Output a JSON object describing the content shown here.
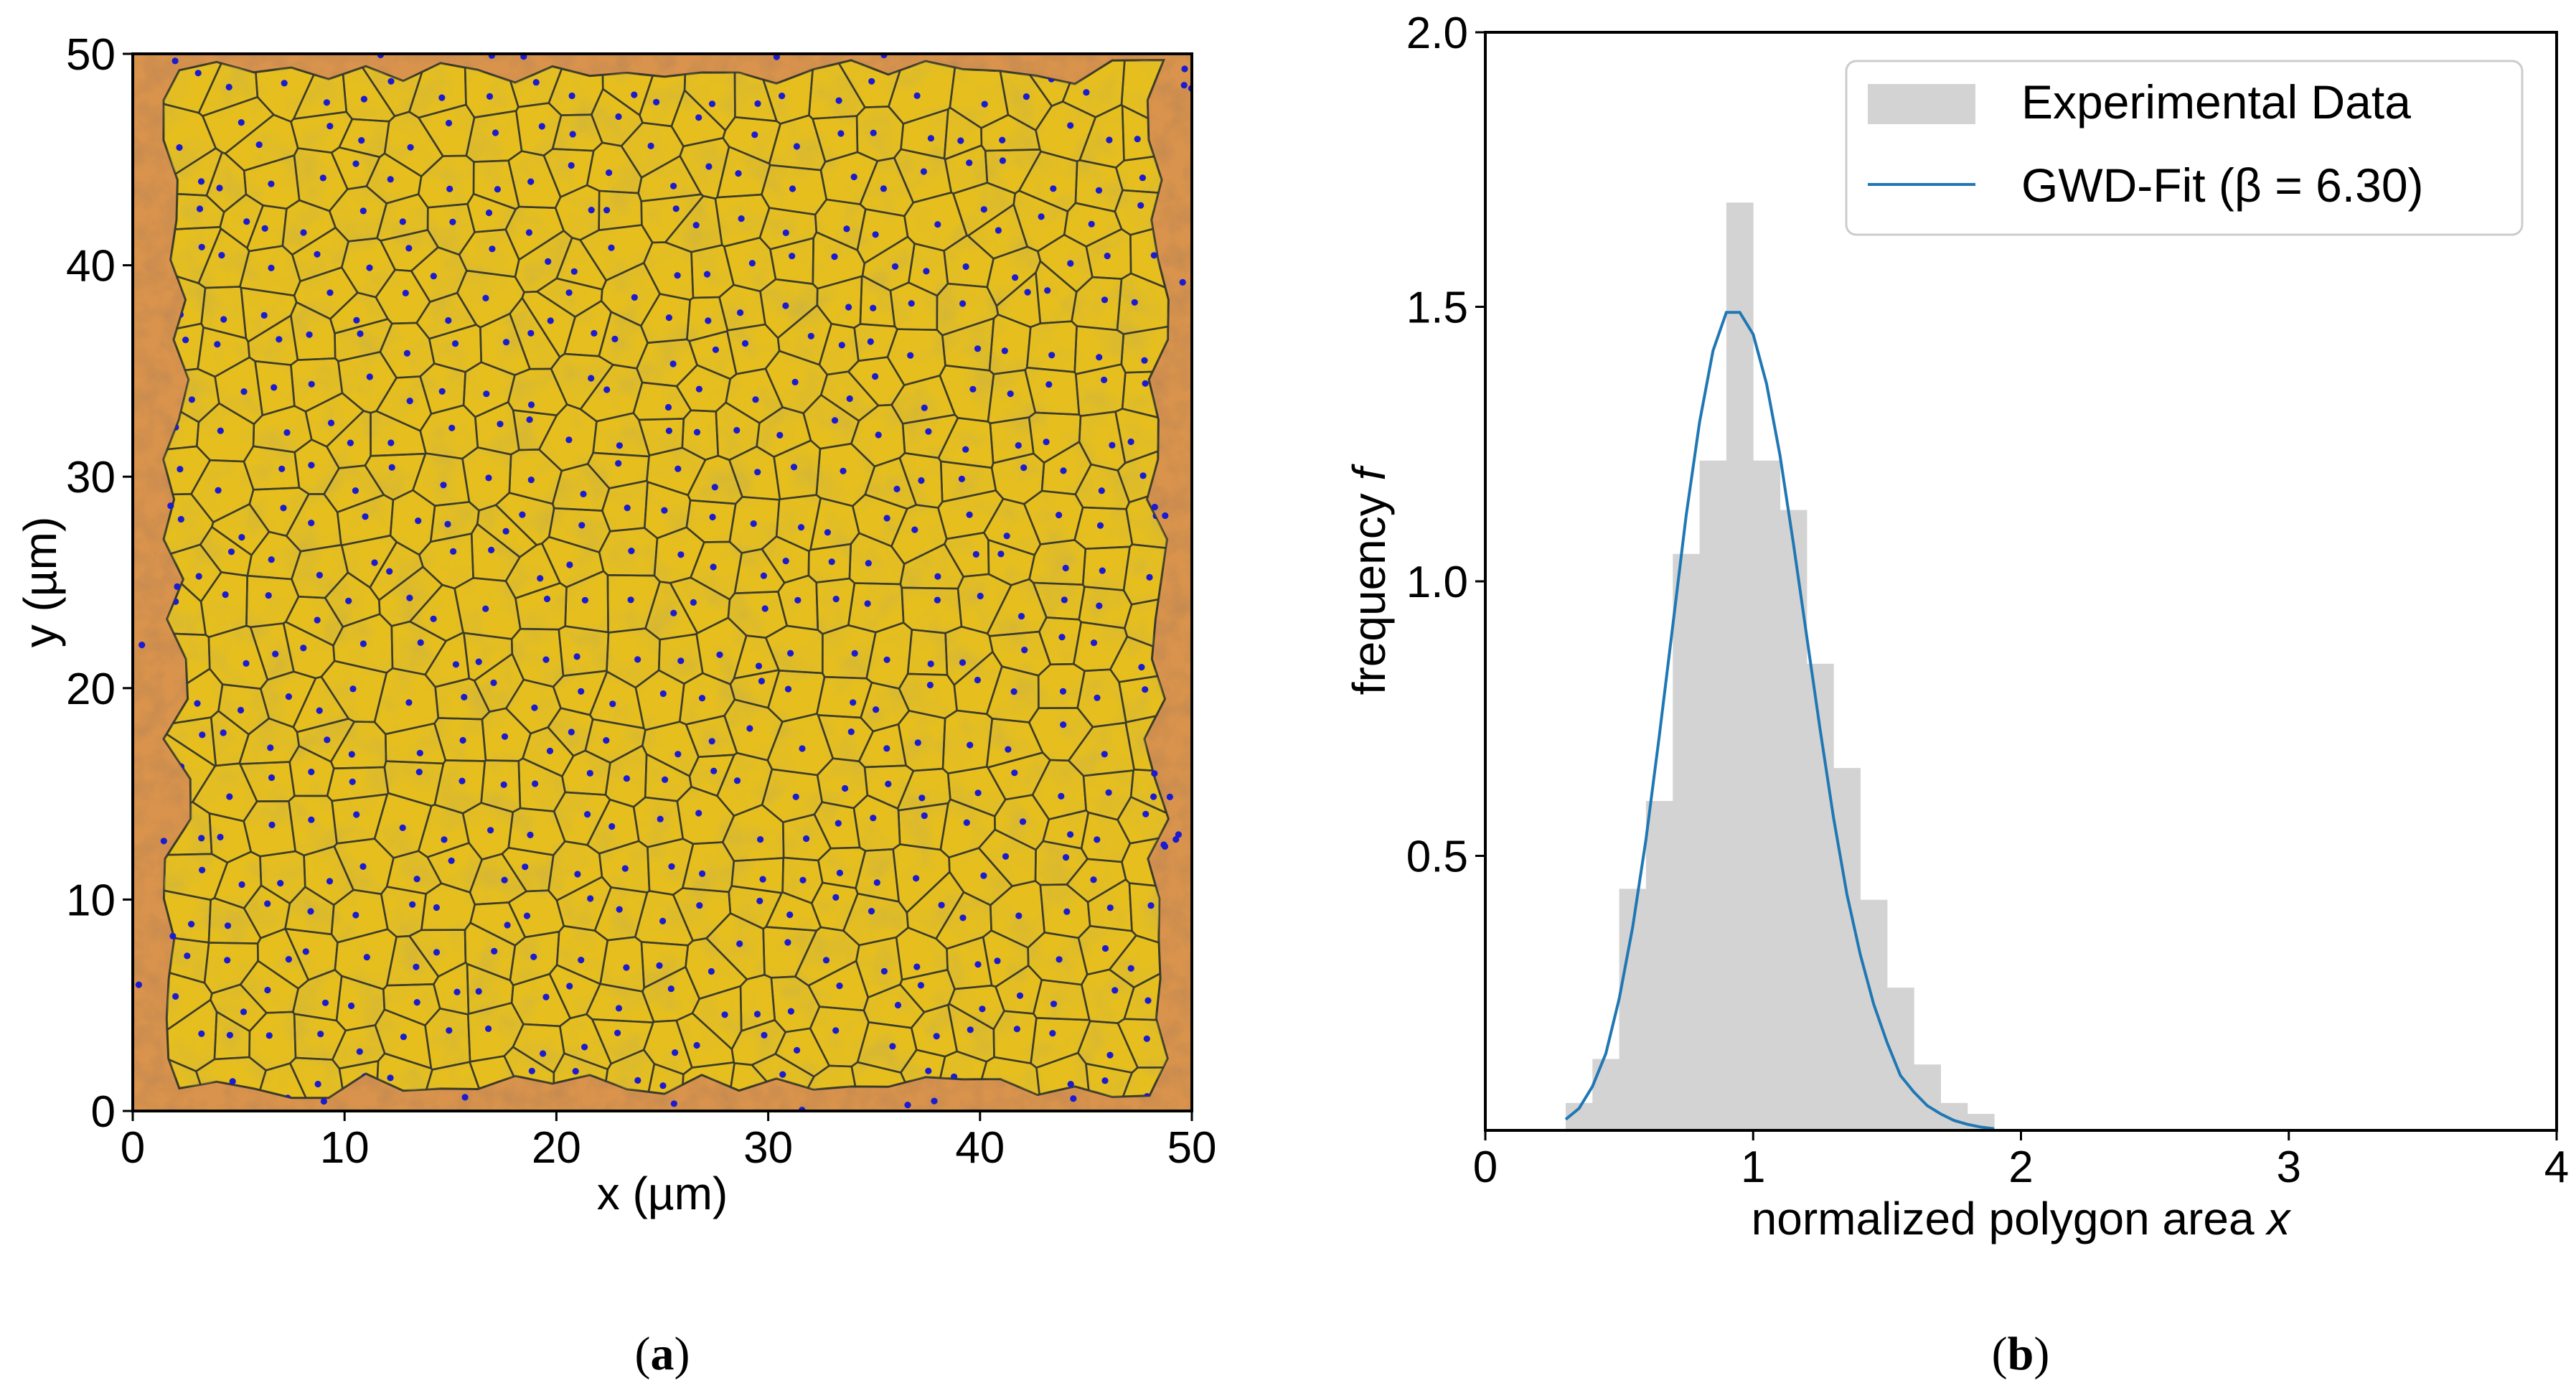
{
  "chart_data": [
    {
      "type": "scatter",
      "panel": "a",
      "caption_letter": "a",
      "caption_open": "(",
      "caption_close": ")",
      "description_words": [],
      "xlabel": "x (µm)",
      "ylabel": "y (µm)",
      "xlim": [
        0,
        50
      ],
      "ylim": [
        0,
        50
      ],
      "xticks": [
        0,
        10,
        20,
        30,
        40,
        50
      ],
      "yticks": [
        0,
        10,
        20,
        30,
        40,
        50
      ],
      "background_colors": {
        "substrate": "#c8753a",
        "substrate_light": "#e9b36a",
        "polygon_fill": "#e6bf1e",
        "polygon_edge": "#3a3a2a",
        "point": "#1b1bd0"
      },
      "region": {
        "x_range": [
          2,
          48.5
        ],
        "y_range": [
          0.5,
          49.8
        ]
      }
    },
    {
      "type": "bar",
      "panel": "b",
      "caption_letter": "b",
      "caption_open": "(",
      "caption_close": ")",
      "xlabel": "normalized polygon area x",
      "xlabel_main": "normalized polygon area ",
      "xlabel_var": "x",
      "ylabel_main": "frequency ",
      "ylabel_var": "f",
      "xlim": [
        0,
        4
      ],
      "ylim": [
        0,
        2.0
      ],
      "xticks": [
        "0",
        "1",
        "2",
        "3",
        "4"
      ],
      "yticks": [
        "0.5",
        "1.0",
        "1.5",
        "2.0"
      ],
      "ytick_values": [
        0.5,
        1.0,
        1.5,
        2.0
      ],
      "histogram": {
        "bin_width": 0.1,
        "bin_left_edges": [
          0.3,
          0.4,
          0.5,
          0.6,
          0.7,
          0.8,
          0.9,
          1.0,
          1.1,
          1.2,
          1.3,
          1.4,
          1.5,
          1.6,
          1.7,
          1.8
        ],
        "values": [
          0.05,
          0.13,
          0.44,
          0.6,
          1.05,
          1.22,
          1.69,
          1.22,
          1.13,
          0.85,
          0.66,
          0.42,
          0.26,
          0.12,
          0.05,
          0.03
        ],
        "color": "#d3d3d3"
      },
      "series": [
        {
          "name": "Experimental Data",
          "kind": "histogram",
          "color": "#d3d3d3"
        },
        {
          "name": "GWD-Fit (β = 6.30)",
          "kind": "line",
          "color": "#1f77b4"
        }
      ],
      "fit_curve": {
        "x": [
          0.3,
          0.35,
          0.4,
          0.45,
          0.5,
          0.55,
          0.6,
          0.65,
          0.7,
          0.75,
          0.8,
          0.85,
          0.9,
          0.95,
          1.0,
          1.05,
          1.1,
          1.15,
          1.2,
          1.25,
          1.3,
          1.35,
          1.4,
          1.45,
          1.5,
          1.55,
          1.6,
          1.65,
          1.7,
          1.75,
          1.8,
          1.85,
          1.9
        ],
        "y": [
          0.02,
          0.04,
          0.08,
          0.14,
          0.24,
          0.37,
          0.53,
          0.72,
          0.92,
          1.12,
          1.29,
          1.42,
          1.49,
          1.49,
          1.45,
          1.36,
          1.23,
          1.07,
          0.9,
          0.73,
          0.57,
          0.43,
          0.32,
          0.23,
          0.16,
          0.1,
          0.07,
          0.045,
          0.03,
          0.018,
          0.011,
          0.006,
          0.003
        ]
      },
      "legend_location": "top-right"
    }
  ]
}
